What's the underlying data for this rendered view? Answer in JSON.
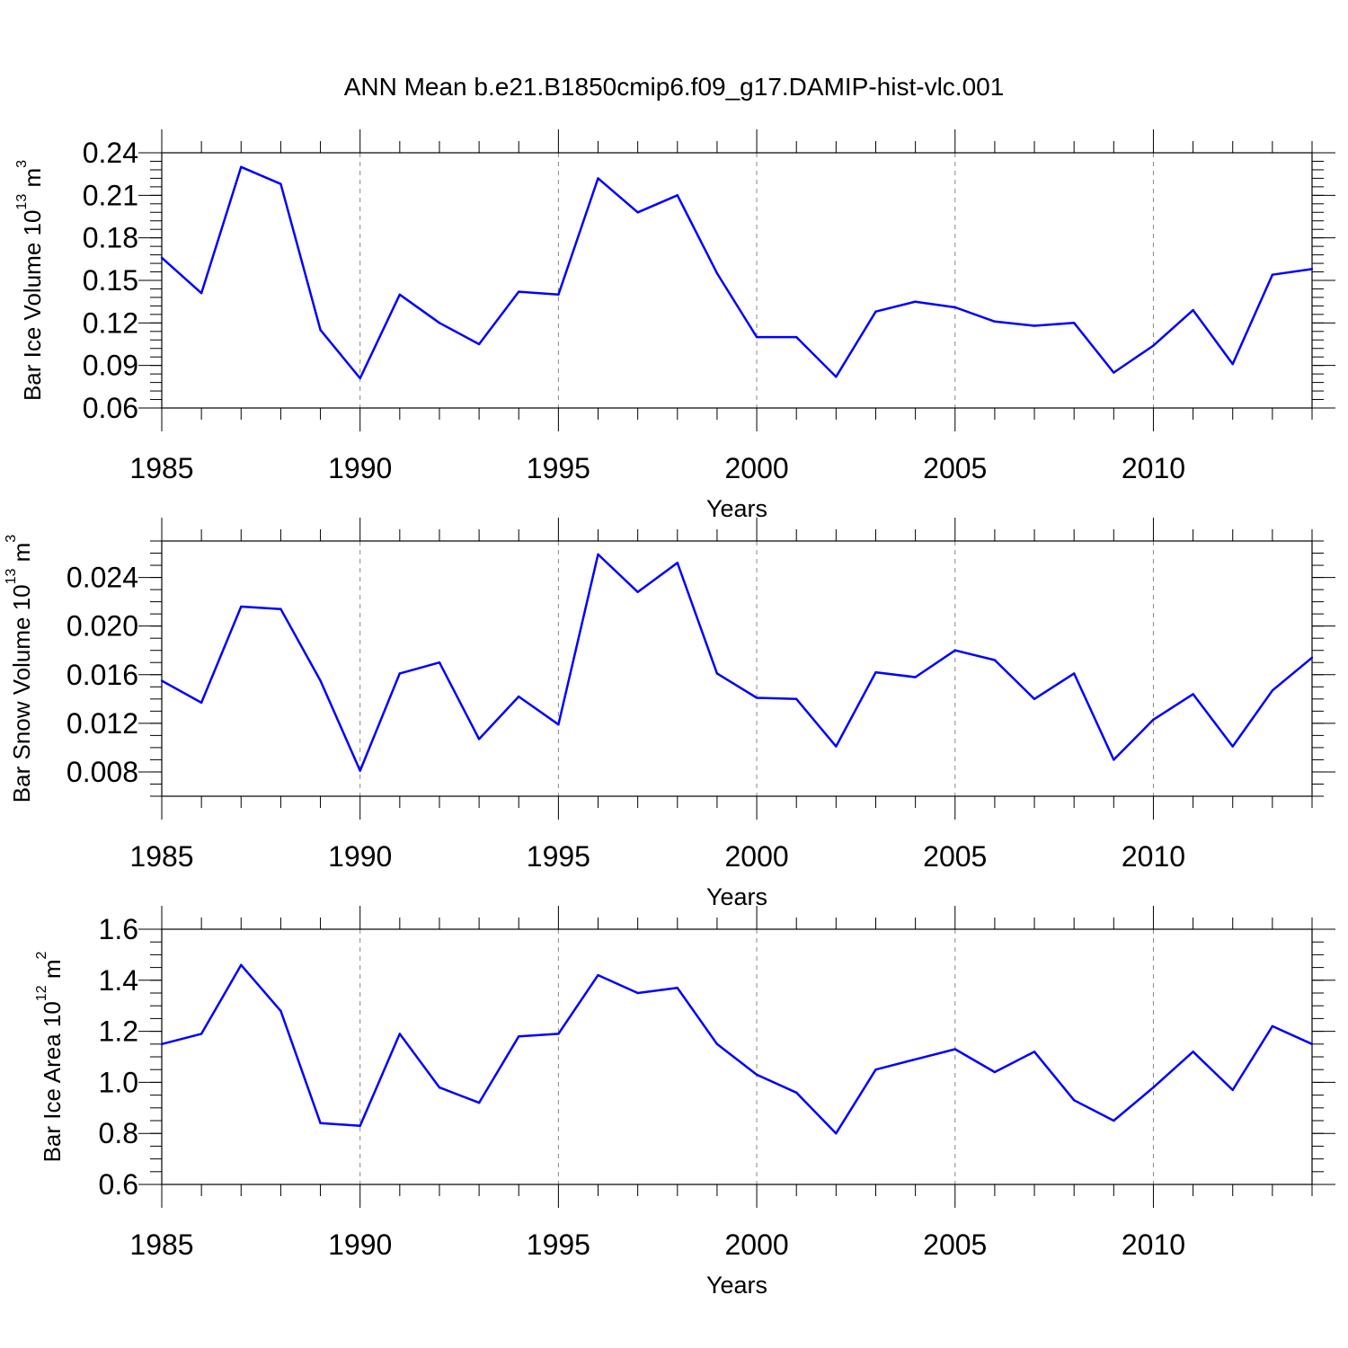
{
  "figure": {
    "title": "ANN Mean b.e21.B1850cmip6.f09_g17.DAMIP-hist-vlc.001"
  },
  "chart_data": [
    {
      "type": "line",
      "title": "",
      "xlabel": "Years",
      "ylabel": {
        "text": "Bar Ice Volume 10",
        "exponent": "13",
        "unit": " m",
        "unit_exponent": "3"
      },
      "xlim": [
        1985,
        2014
      ],
      "ylim": [
        0.06,
        0.24
      ],
      "xticks": [
        1985,
        1990,
        1995,
        2000,
        2005,
        2010
      ],
      "xtick_labels": [
        "1985",
        "1990",
        "1995",
        "2000",
        "2005",
        "2010"
      ],
      "yticks": [
        0.06,
        0.09,
        0.12,
        0.15,
        0.18,
        0.21,
        0.24
      ],
      "ytick_labels": [
        "0.06",
        "0.09",
        "0.12",
        "0.15",
        "0.18",
        "0.21",
        "0.24"
      ],
      "grid": "vertical dashed at labeled years",
      "color": "#0000ff",
      "x": [
        1985,
        1986,
        1987,
        1988,
        1989,
        1990,
        1991,
        1992,
        1993,
        1994,
        1995,
        1996,
        1997,
        1998,
        1999,
        2000,
        2001,
        2002,
        2003,
        2004,
        2005,
        2006,
        2007,
        2008,
        2009,
        2010,
        2011,
        2012,
        2013,
        2014
      ],
      "values": [
        0.166,
        0.141,
        0.23,
        0.218,
        0.115,
        0.081,
        0.14,
        0.12,
        0.105,
        0.142,
        0.14,
        0.222,
        0.198,
        0.21,
        0.155,
        0.11,
        0.11,
        0.082,
        0.128,
        0.135,
        0.131,
        0.121,
        0.118,
        0.12,
        0.085,
        0.104,
        0.129,
        0.091,
        0.154,
        0.158
      ]
    },
    {
      "type": "line",
      "title": "",
      "xlabel": "Years",
      "ylabel": {
        "text": "Bar Snow Volume 10",
        "exponent": "13",
        "unit": " m",
        "unit_exponent": "3"
      },
      "xlim": [
        1985,
        2014
      ],
      "ylim": [
        0.006,
        0.027
      ],
      "xticks": [
        1985,
        1990,
        1995,
        2000,
        2005,
        2010
      ],
      "xtick_labels": [
        "1985",
        "1990",
        "1995",
        "2000",
        "2005",
        "2010"
      ],
      "yticks": [
        0.008,
        0.012,
        0.016,
        0.02,
        0.024
      ],
      "ytick_labels": [
        "0.008",
        "0.012",
        "0.016",
        "0.020",
        "0.024"
      ],
      "grid": "vertical dashed at labeled years",
      "color": "#0000ff",
      "x": [
        1985,
        1986,
        1987,
        1988,
        1989,
        1990,
        1991,
        1992,
        1993,
        1994,
        1995,
        1996,
        1997,
        1998,
        1999,
        2000,
        2001,
        2002,
        2003,
        2004,
        2005,
        2006,
        2007,
        2008,
        2009,
        2010,
        2011,
        2012,
        2013,
        2014
      ],
      "values": [
        0.0155,
        0.0137,
        0.0216,
        0.0214,
        0.0155,
        0.0081,
        0.0161,
        0.017,
        0.0107,
        0.0142,
        0.0119,
        0.0259,
        0.0228,
        0.0252,
        0.0161,
        0.0141,
        0.014,
        0.0101,
        0.0162,
        0.0158,
        0.018,
        0.0172,
        0.014,
        0.0161,
        0.009,
        0.0123,
        0.0144,
        0.0101,
        0.0147,
        0.0174
      ]
    },
    {
      "type": "line",
      "title": "",
      "xlabel": "Years",
      "ylabel": {
        "text": "Bar Ice Area 10",
        "exponent": "12",
        "unit": " m",
        "unit_exponent": "2"
      },
      "xlim": [
        1985,
        2014
      ],
      "ylim": [
        0.6,
        1.6
      ],
      "xticks": [
        1985,
        1990,
        1995,
        2000,
        2005,
        2010
      ],
      "xtick_labels": [
        "1985",
        "1990",
        "1995",
        "2000",
        "2005",
        "2010"
      ],
      "yticks": [
        0.6,
        0.8,
        1.0,
        1.2,
        1.4,
        1.6
      ],
      "ytick_labels": [
        "0.6",
        "0.8",
        "1.0",
        "1.2",
        "1.4",
        "1.6"
      ],
      "grid": "vertical dashed at labeled years",
      "color": "#0000ff",
      "x": [
        1985,
        1986,
        1987,
        1988,
        1989,
        1990,
        1991,
        1992,
        1993,
        1994,
        1995,
        1996,
        1997,
        1998,
        1999,
        2000,
        2001,
        2002,
        2003,
        2004,
        2005,
        2006,
        2007,
        2008,
        2009,
        2010,
        2011,
        2012,
        2013,
        2014
      ],
      "values": [
        1.15,
        1.19,
        1.46,
        1.28,
        0.84,
        0.83,
        1.19,
        0.98,
        0.92,
        1.18,
        1.19,
        1.42,
        1.35,
        1.37,
        1.15,
        1.03,
        0.96,
        0.8,
        1.05,
        1.09,
        1.13,
        1.04,
        1.12,
        0.93,
        0.85,
        0.98,
        1.12,
        0.97,
        1.22,
        1.15
      ]
    }
  ]
}
